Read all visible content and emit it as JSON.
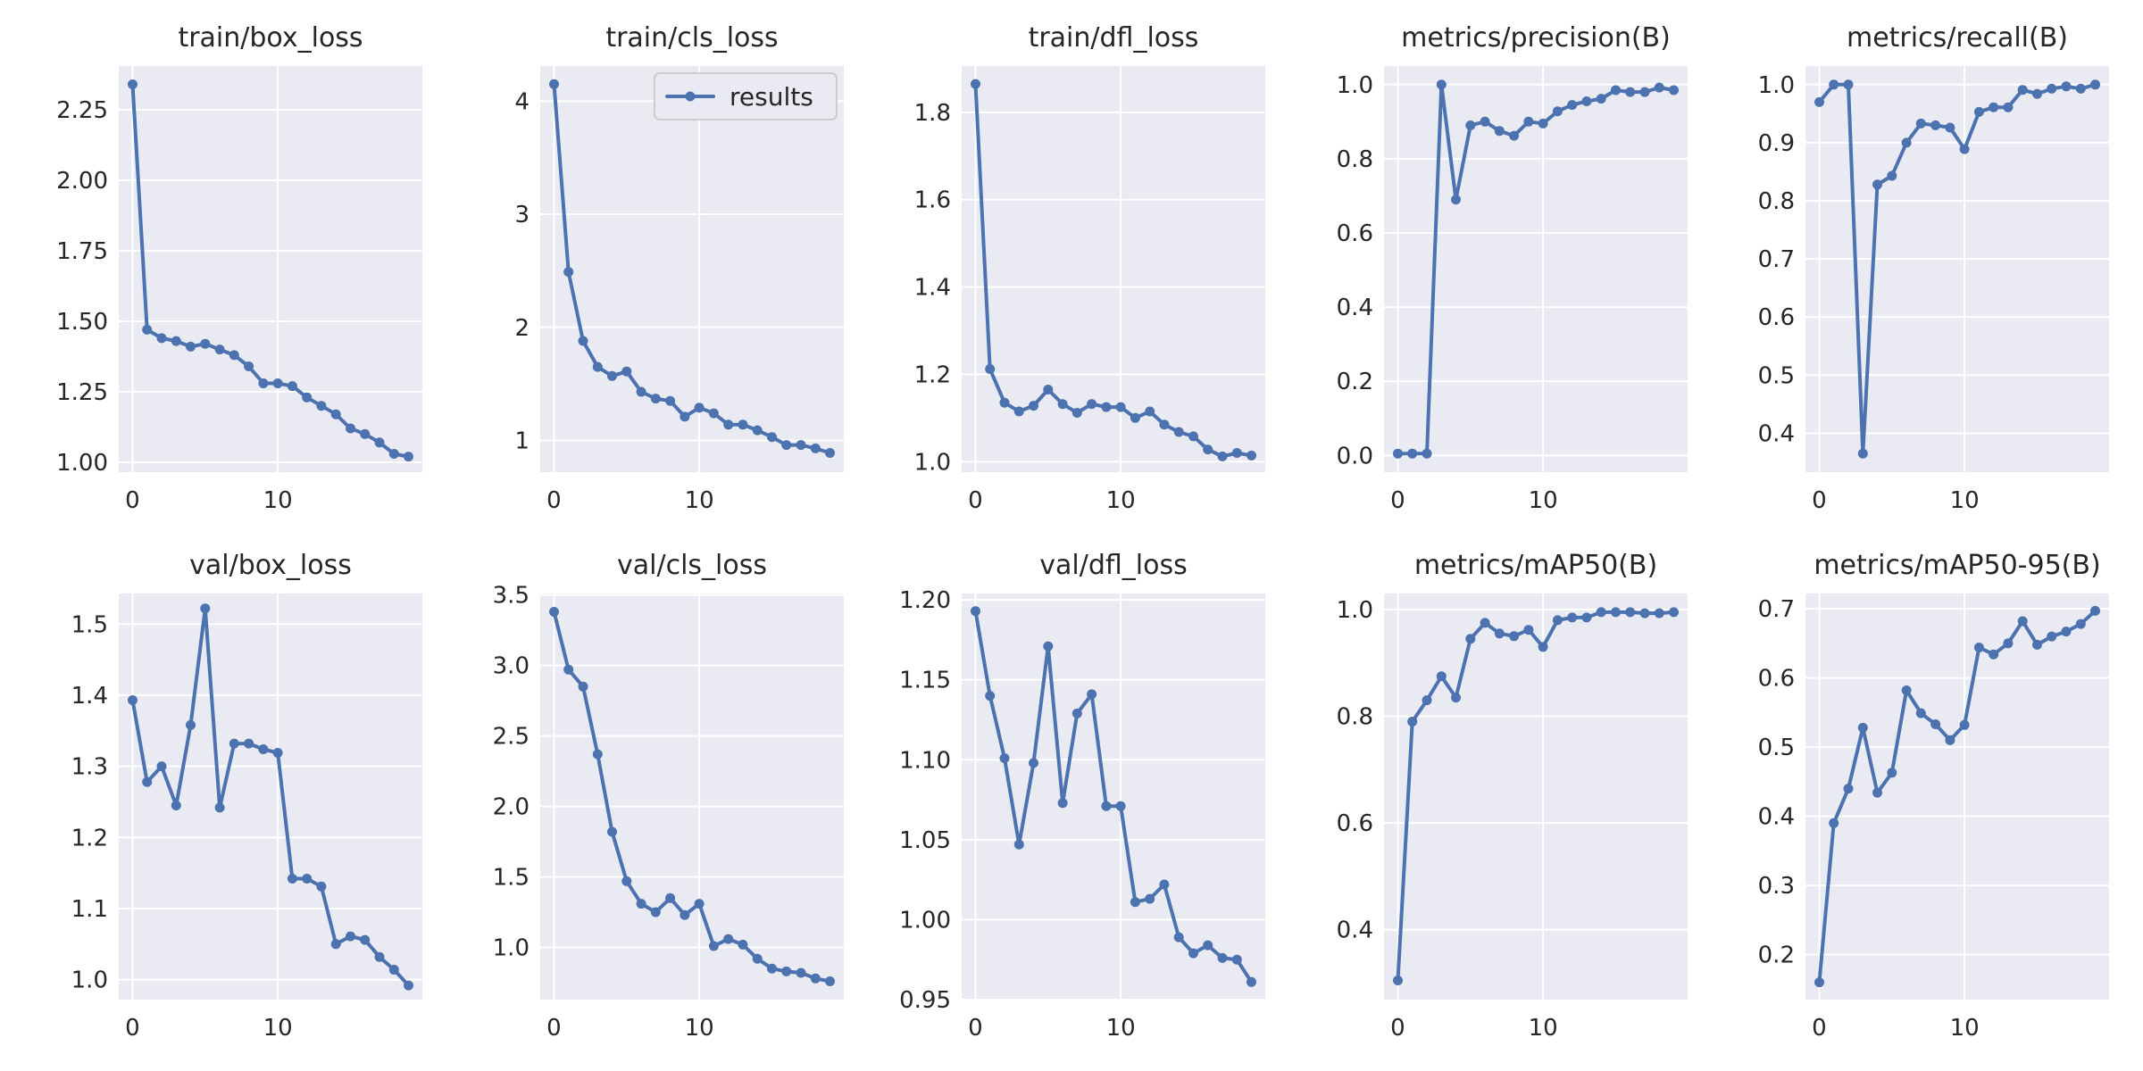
{
  "figure": {
    "background": "#ffffff",
    "plot_background": "#EAEAF2",
    "line_color": "#4C72B0",
    "grid_color": "#ffffff"
  },
  "chart_data": [
    {
      "type": "line",
      "title": "train/box_loss",
      "xlabel": "",
      "ylabel": "",
      "x": [
        0,
        1,
        2,
        3,
        4,
        5,
        6,
        7,
        8,
        9,
        10,
        11,
        12,
        13,
        14,
        15,
        16,
        17,
        18,
        19
      ],
      "series": [
        {
          "name": "results",
          "values": [
            2.34,
            1.47,
            1.44,
            1.43,
            1.41,
            1.42,
            1.4,
            1.38,
            1.34,
            1.28,
            1.28,
            1.27,
            1.23,
            1.2,
            1.17,
            1.12,
            1.1,
            1.07,
            1.03,
            1.02
          ]
        }
      ],
      "xlim": [
        -0.95,
        19.95
      ],
      "ylim": [
        0.965,
        2.405
      ],
      "xticks": [
        0,
        10
      ],
      "xtick_labels": [
        "0",
        "10"
      ],
      "yticks": [
        1.0,
        1.25,
        1.5,
        1.75,
        2.0,
        2.25
      ],
      "ytick_labels": [
        "1.00",
        "1.25",
        "1.50",
        "1.75",
        "2.00",
        "2.25"
      ],
      "grid": true
    },
    {
      "type": "line",
      "title": "train/cls_loss",
      "xlabel": "",
      "ylabel": "",
      "x": [
        0,
        1,
        2,
        3,
        4,
        5,
        6,
        7,
        8,
        9,
        10,
        11,
        12,
        13,
        14,
        15,
        16,
        17,
        18,
        19
      ],
      "series": [
        {
          "name": "results",
          "values": [
            4.15,
            2.49,
            1.88,
            1.65,
            1.57,
            1.61,
            1.43,
            1.37,
            1.35,
            1.21,
            1.29,
            1.24,
            1.14,
            1.14,
            1.09,
            1.03,
            0.96,
            0.96,
            0.93,
            0.89
          ]
        }
      ],
      "xlim": [
        -0.95,
        19.95
      ],
      "ylim": [
        0.72,
        4.31
      ],
      "xticks": [
        0,
        10
      ],
      "xtick_labels": [
        "0",
        "10"
      ],
      "yticks": [
        1,
        2,
        3,
        4
      ],
      "ytick_labels": [
        "1",
        "2",
        "3",
        "4"
      ],
      "grid": true,
      "legend": {
        "position": "top-right",
        "label": "results"
      }
    },
    {
      "type": "line",
      "title": "train/dfl_loss",
      "xlabel": "",
      "ylabel": "",
      "x": [
        0,
        1,
        2,
        3,
        4,
        5,
        6,
        7,
        8,
        9,
        10,
        11,
        12,
        13,
        14,
        15,
        16,
        17,
        18,
        19
      ],
      "series": [
        {
          "name": "results",
          "values": [
            1.865,
            1.212,
            1.135,
            1.115,
            1.128,
            1.165,
            1.132,
            1.112,
            1.132,
            1.125,
            1.125,
            1.1,
            1.115,
            1.085,
            1.068,
            1.058,
            1.028,
            1.012,
            1.02,
            1.014
          ]
        }
      ],
      "xlim": [
        -0.95,
        19.95
      ],
      "ylim": [
        0.976,
        1.906
      ],
      "xticks": [
        0,
        10
      ],
      "xtick_labels": [
        "0",
        "10"
      ],
      "yticks": [
        1.0,
        1.2,
        1.4,
        1.6,
        1.8
      ],
      "ytick_labels": [
        "1.0",
        "1.2",
        "1.4",
        "1.6",
        "1.8"
      ],
      "grid": true
    },
    {
      "type": "line",
      "title": "metrics/precision(B)",
      "xlabel": "",
      "ylabel": "",
      "x": [
        0,
        1,
        2,
        3,
        4,
        5,
        6,
        7,
        8,
        9,
        10,
        11,
        12,
        13,
        14,
        15,
        16,
        17,
        18,
        19
      ],
      "series": [
        {
          "name": "results",
          "values": [
            0.005,
            0.005,
            0.005,
            1.0,
            0.69,
            0.89,
            0.9,
            0.875,
            0.862,
            0.9,
            0.895,
            0.928,
            0.945,
            0.955,
            0.962,
            0.985,
            0.98,
            0.98,
            0.992,
            0.985
          ]
        }
      ],
      "xlim": [
        -0.95,
        19.95
      ],
      "ylim": [
        -0.045,
        1.05
      ],
      "xticks": [
        0,
        10
      ],
      "xtick_labels": [
        "0",
        "10"
      ],
      "yticks": [
        0.0,
        0.2,
        0.4,
        0.6,
        0.8,
        1.0
      ],
      "ytick_labels": [
        "0.0",
        "0.2",
        "0.4",
        "0.6",
        "0.8",
        "1.0"
      ],
      "grid": true
    },
    {
      "type": "line",
      "title": "metrics/recall(B)",
      "xlabel": "",
      "ylabel": "",
      "x": [
        0,
        1,
        2,
        3,
        4,
        5,
        6,
        7,
        8,
        9,
        10,
        11,
        12,
        13,
        14,
        15,
        16,
        17,
        18,
        19
      ],
      "series": [
        {
          "name": "results",
          "values": [
            0.97,
            1.0,
            1.0,
            0.365,
            0.828,
            0.843,
            0.9,
            0.933,
            0.93,
            0.926,
            0.889,
            0.953,
            0.961,
            0.961,
            0.991,
            0.984,
            0.993,
            0.997,
            0.993,
            1.0
          ]
        }
      ],
      "xlim": [
        -0.95,
        19.95
      ],
      "ylim": [
        0.333,
        1.032
      ],
      "xticks": [
        0,
        10
      ],
      "xtick_labels": [
        "0",
        "10"
      ],
      "yticks": [
        0.4,
        0.5,
        0.6,
        0.7,
        0.8,
        0.9,
        1.0
      ],
      "ytick_labels": [
        "0.4",
        "0.5",
        "0.6",
        "0.7",
        "0.8",
        "0.9",
        "1.0"
      ],
      "grid": true
    },
    {
      "type": "line",
      "title": "val/box_loss",
      "xlabel": "",
      "ylabel": "",
      "x": [
        0,
        1,
        2,
        3,
        4,
        5,
        6,
        7,
        8,
        9,
        10,
        11,
        12,
        13,
        14,
        15,
        16,
        17,
        18,
        19
      ],
      "series": [
        {
          "name": "results",
          "values": [
            1.393,
            1.278,
            1.3,
            1.245,
            1.358,
            1.522,
            1.242,
            1.332,
            1.332,
            1.324,
            1.319,
            1.142,
            1.142,
            1.131,
            1.05,
            1.061,
            1.056,
            1.032,
            1.014,
            0.992
          ]
        }
      ],
      "xlim": [
        -0.95,
        19.95
      ],
      "ylim": [
        0.972,
        1.543
      ],
      "xticks": [
        0,
        10
      ],
      "xtick_labels": [
        "0",
        "10"
      ],
      "yticks": [
        1.0,
        1.1,
        1.2,
        1.3,
        1.4,
        1.5
      ],
      "ytick_labels": [
        "1.0",
        "1.1",
        "1.2",
        "1.3",
        "1.4",
        "1.5"
      ],
      "grid": true
    },
    {
      "type": "line",
      "title": "val/cls_loss",
      "xlabel": "",
      "ylabel": "",
      "x": [
        0,
        1,
        2,
        3,
        4,
        5,
        6,
        7,
        8,
        9,
        10,
        11,
        12,
        13,
        14,
        15,
        16,
        17,
        18,
        19
      ],
      "series": [
        {
          "name": "results",
          "values": [
            3.38,
            2.97,
            2.85,
            2.37,
            1.82,
            1.47,
            1.31,
            1.25,
            1.35,
            1.23,
            1.31,
            1.01,
            1.06,
            1.02,
            0.92,
            0.85,
            0.83,
            0.82,
            0.78,
            0.76
          ]
        }
      ],
      "xlim": [
        -0.95,
        19.95
      ],
      "ylim": [
        0.63,
        3.51
      ],
      "xticks": [
        0,
        10
      ],
      "xtick_labels": [
        "0",
        "10"
      ],
      "yticks": [
        1.0,
        1.5,
        2.0,
        2.5,
        3.0,
        3.5
      ],
      "ytick_labels": [
        "1.0",
        "1.5",
        "2.0",
        "2.5",
        "3.0",
        "3.5"
      ],
      "grid": true
    },
    {
      "type": "line",
      "title": "val/dfl_loss",
      "xlabel": "",
      "ylabel": "",
      "x": [
        0,
        1,
        2,
        3,
        4,
        5,
        6,
        7,
        8,
        9,
        10,
        11,
        12,
        13,
        14,
        15,
        16,
        17,
        18,
        19
      ],
      "series": [
        {
          "name": "results",
          "values": [
            1.193,
            1.14,
            1.101,
            1.047,
            1.098,
            1.171,
            1.073,
            1.129,
            1.141,
            1.071,
            1.071,
            1.011,
            1.013,
            1.022,
            0.989,
            0.979,
            0.984,
            0.976,
            0.975,
            0.961
          ]
        }
      ],
      "xlim": [
        -0.95,
        19.95
      ],
      "ylim": [
        0.95,
        1.204
      ],
      "xticks": [
        0,
        10
      ],
      "xtick_labels": [
        "0",
        "10"
      ],
      "yticks": [
        0.95,
        1.0,
        1.05,
        1.1,
        1.15,
        1.2
      ],
      "ytick_labels": [
        "0.95",
        "1.00",
        "1.05",
        "1.10",
        "1.15",
        "1.20"
      ],
      "grid": true
    },
    {
      "type": "line",
      "title": "metrics/mAP50(B)",
      "xlabel": "",
      "ylabel": "",
      "x": [
        0,
        1,
        2,
        3,
        4,
        5,
        6,
        7,
        8,
        9,
        10,
        11,
        12,
        13,
        14,
        15,
        16,
        17,
        18,
        19
      ],
      "series": [
        {
          "name": "results",
          "values": [
            0.305,
            0.79,
            0.83,
            0.875,
            0.835,
            0.945,
            0.975,
            0.955,
            0.95,
            0.962,
            0.93,
            0.98,
            0.985,
            0.985,
            0.995,
            0.995,
            0.995,
            0.993,
            0.993,
            0.995
          ]
        }
      ],
      "xlim": [
        -0.95,
        19.95
      ],
      "ylim": [
        0.269,
        1.03
      ],
      "xticks": [
        0,
        10
      ],
      "xtick_labels": [
        "0",
        "10"
      ],
      "yticks": [
        0.4,
        0.6,
        0.8,
        1.0
      ],
      "ytick_labels": [
        "0.4",
        "0.6",
        "0.8",
        "1.0"
      ],
      "grid": true
    },
    {
      "type": "line",
      "title": "metrics/mAP50-95(B)",
      "xlabel": "",
      "ylabel": "",
      "x": [
        0,
        1,
        2,
        3,
        4,
        5,
        6,
        7,
        8,
        9,
        10,
        11,
        12,
        13,
        14,
        15,
        16,
        17,
        18,
        19
      ],
      "series": [
        {
          "name": "results",
          "values": [
            0.16,
            0.39,
            0.44,
            0.528,
            0.434,
            0.463,
            0.582,
            0.549,
            0.533,
            0.51,
            0.532,
            0.644,
            0.634,
            0.65,
            0.682,
            0.648,
            0.66,
            0.667,
            0.678,
            0.697
          ]
        }
      ],
      "xlim": [
        -0.95,
        19.95
      ],
      "ylim": [
        0.135,
        0.722
      ],
      "xticks": [
        0,
        10
      ],
      "xtick_labels": [
        "0",
        "10"
      ],
      "yticks": [
        0.2,
        0.3,
        0.4,
        0.5,
        0.6,
        0.7
      ],
      "ytick_labels": [
        "0.2",
        "0.3",
        "0.4",
        "0.5",
        "0.6",
        "0.7"
      ],
      "grid": true
    }
  ]
}
